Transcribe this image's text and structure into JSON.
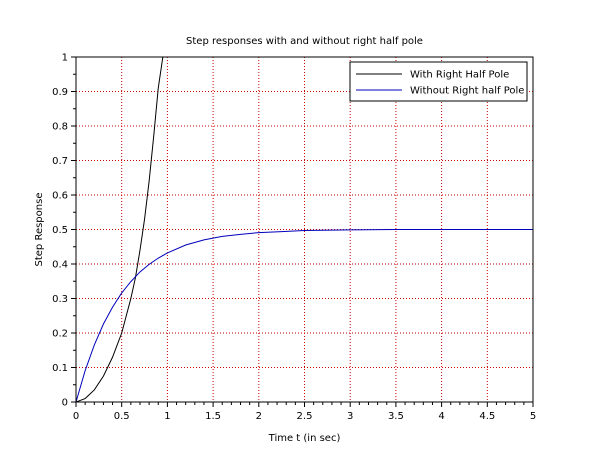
{
  "chart_data": {
    "type": "line",
    "title": "Step responses with and without right half pole",
    "xlabel": "Time t (in sec)",
    "ylabel": "Step Response",
    "xlim": [
      0,
      5
    ],
    "ylim": [
      0,
      1
    ],
    "x_ticks": [
      "0",
      "0.5",
      "1",
      "1.5",
      "2",
      "2.5",
      "3",
      "3.5",
      "4",
      "4.5",
      "5"
    ],
    "y_ticks": [
      "0",
      "0.1",
      "0.2",
      "0.3",
      "0.4",
      "0.5",
      "0.6",
      "0.7",
      "0.8",
      "0.9",
      "1"
    ],
    "grid": true,
    "grid_color": "#cc0000",
    "legend_position": "top-right",
    "series": [
      {
        "name": "With Right Half Pole",
        "color": "#000000",
        "x": [
          0,
          0.1,
          0.2,
          0.3,
          0.4,
          0.5,
          0.6,
          0.65,
          0.7,
          0.75,
          0.8,
          0.85,
          0.9,
          0.95
        ],
        "y": [
          0,
          0.01,
          0.035,
          0.075,
          0.13,
          0.2,
          0.3,
          0.36,
          0.44,
          0.53,
          0.64,
          0.77,
          0.91,
          1.0
        ]
      },
      {
        "name": "Without Right half Pole",
        "color": "#0000bb",
        "x": [
          0,
          0.1,
          0.2,
          0.3,
          0.4,
          0.5,
          0.6,
          0.7,
          0.8,
          0.9,
          1.0,
          1.2,
          1.4,
          1.6,
          1.8,
          2.0,
          2.25,
          2.5,
          3.0,
          3.5,
          4.0,
          4.5,
          5.0
        ],
        "y": [
          0,
          0.091,
          0.165,
          0.226,
          0.275,
          0.316,
          0.349,
          0.377,
          0.399,
          0.417,
          0.432,
          0.455,
          0.47,
          0.48,
          0.486,
          0.491,
          0.494,
          0.497,
          0.499,
          0.5,
          0.5,
          0.5,
          0.5
        ]
      }
    ]
  }
}
